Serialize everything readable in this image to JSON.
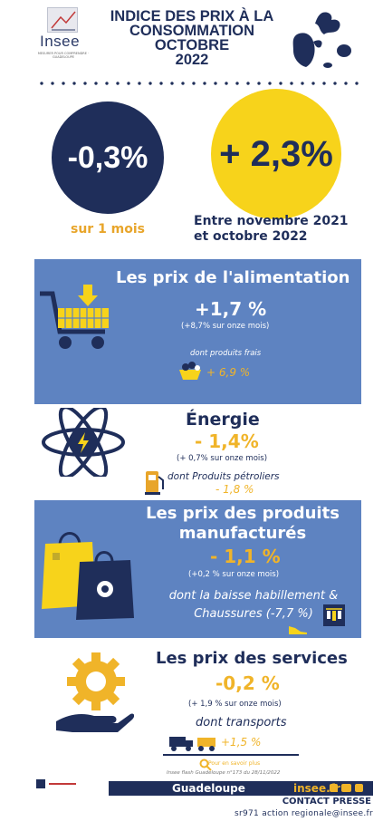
{
  "header": {
    "logo_text": "Insee",
    "logo_subtext": "MESURER POUR COMPRENDRE · GUADELOUPE",
    "title_lines": [
      "INDICE DES PRIX À LA",
      "CONSOMMATION",
      "OCTOBRE",
      "2022"
    ]
  },
  "kpis": {
    "monthly": {
      "value": "-0,3%",
      "label": "sur 1 mois"
    },
    "yearly": {
      "value": "+ 2,3%",
      "label_lines": [
        "Entre novembre 2021",
        "et octobre 2022"
      ]
    }
  },
  "sections": {
    "food": {
      "title": "Les prix de l'alimentation",
      "value": "+1,7 %",
      "eleven": "(+8,7% sur onze mois)",
      "detail_label": "dont produits frais",
      "detail_value": "+ 6,9 %"
    },
    "energy": {
      "title": "Énergie",
      "value": "- 1,4%",
      "eleven": "(+ 0,7% sur onze mois)",
      "detail_label": "dont Produits pétroliers",
      "detail_value": "- 1,8 %"
    },
    "manufactured": {
      "title_lines": [
        "Les prix des produits",
        "manufacturés"
      ],
      "value": "- 1,1 %",
      "eleven": "(+0,2 % sur onze mois)",
      "detail_lines": [
        "dont la baisse habillement &",
        "Chaussures (-7,7 %)"
      ]
    },
    "services": {
      "title": "Les prix des services",
      "value": "-0,2 %",
      "eleven": "(+ 1,9 % sur onze mois)",
      "detail_label": "dont transports",
      "detail_value": "+1,5 %"
    }
  },
  "more_info": {
    "label": "Pour en savoir plus",
    "ref": "Insee flash Guadeloupe n°173 du 28/11/2022"
  },
  "footer": {
    "region": "Guadeloupe",
    "site": "insee.fr",
    "contact_title": "CONTACT PRESSE",
    "contact_email": "sr971 action regionale@insee.fr"
  },
  "colors": {
    "navy": "#1f2e5a",
    "blue_band": "#5e83c1",
    "yellow": "#f7d31b",
    "orange": "#f0b429"
  },
  "icons": [
    "shopping-cart-icon",
    "atom-icon",
    "fuel-pump-icon",
    "shopping-bags-icon",
    "gear-hand-icon",
    "truck-icon",
    "magnifier-icon",
    "twitter-icon",
    "youtube-icon",
    "linkedin-icon"
  ]
}
